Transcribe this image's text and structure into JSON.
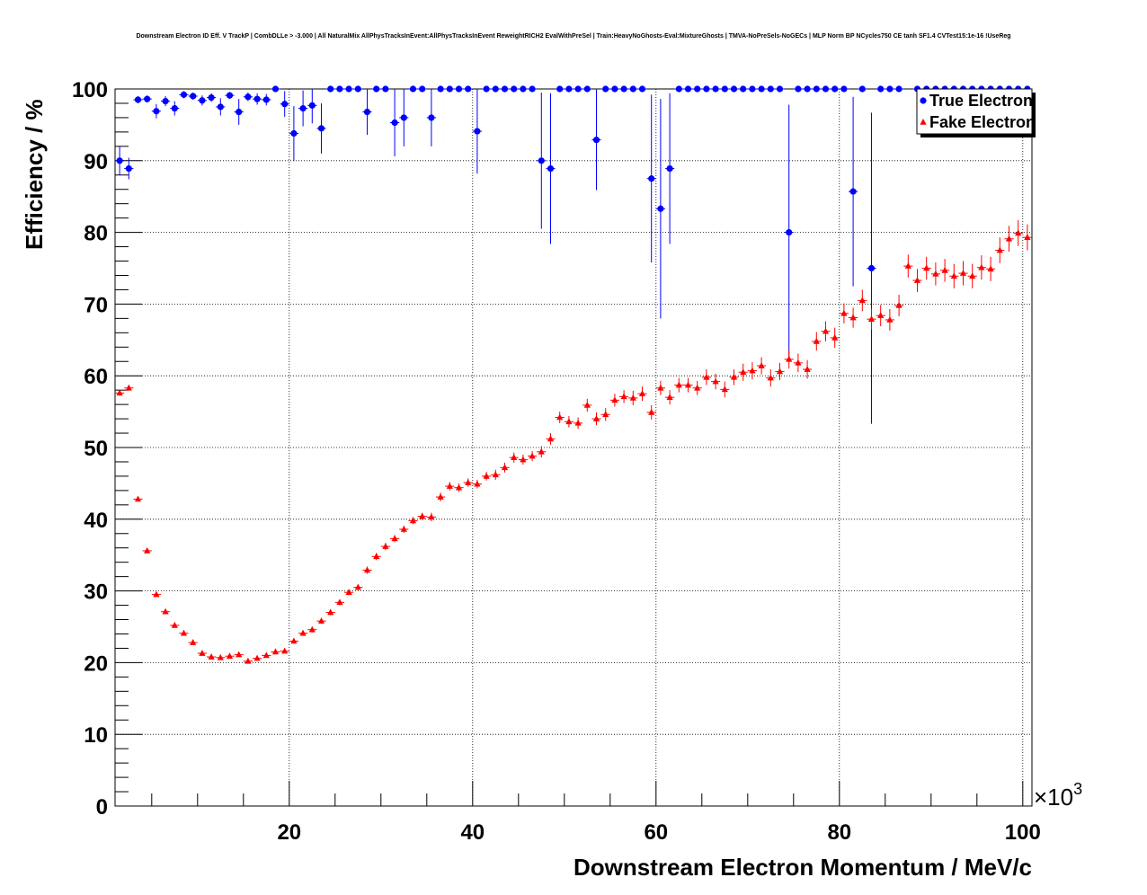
{
  "chart_data": {
    "type": "scatter",
    "title": "Downstream Electron ID Eff. V TrackP | CombDLLe > -3.000 | All NaturalMix AllPhysTracksInEvent:AllPhysTracksInEvent ReweightRICH2 EvalWithPreSel | Train:HeavyNoGhosts-Eval:MixtureGhosts | TMVA-NoPreSels-NoGECs | MLP Norm BP NCycles750 CE tanh SF1.4 CVTest15:1e-16 !UseReg",
    "xlabel": "Downstream Electron Momentum / MeV/c",
    "ylabel": "Efficiency / %",
    "x_multiplier_label": "×10",
    "x_multiplier_exponent": "3",
    "xlim": [
      1,
      101
    ],
    "ylim": [
      0,
      100
    ],
    "x_ticks": [
      "20",
      "40",
      "60",
      "80",
      "100"
    ],
    "y_ticks": [
      "0",
      "10",
      "20",
      "30",
      "40",
      "50",
      "60",
      "70",
      "80",
      "90",
      "100"
    ],
    "grid": true,
    "legend_position": "top-right",
    "series": [
      {
        "name": "True Electron",
        "color": "#0000ff",
        "marker": "circle",
        "x": [
          1.5,
          2.5,
          3.5,
          4.5,
          5.5,
          6.5,
          7.5,
          8.5,
          9.5,
          10.5,
          11.5,
          12.5,
          13.5,
          14.5,
          15.5,
          16.5,
          17.5,
          18.5,
          19.5,
          20.5,
          21.5,
          22.5,
          23.5,
          24.5,
          25.5,
          26.5,
          27.5,
          28.5,
          29.5,
          30.5,
          31.5,
          32.5,
          33.5,
          34.5,
          35.5,
          36.5,
          37.5,
          38.5,
          39.5,
          40.5,
          41.5,
          42.5,
          43.5,
          44.5,
          45.5,
          46.5,
          47.5,
          48.5,
          49.5,
          50.5,
          51.5,
          52.5,
          53.5,
          54.5,
          55.5,
          56.5,
          57.5,
          58.5,
          59.5,
          60.5,
          61.5,
          62.5,
          63.5,
          64.5,
          65.5,
          66.5,
          67.5,
          68.5,
          69.5,
          70.5,
          71.5,
          72.5,
          73.5,
          74.5,
          75.5,
          76.5,
          77.5,
          78.5,
          79.5,
          80.5,
          81.5,
          82.5,
          83.5,
          84.5,
          85.5,
          86.5,
          87.5,
          88.5,
          89.5,
          90.5,
          91.5,
          92.5,
          93.5,
          94.5,
          95.5,
          96.5,
          97.5,
          98.5,
          99.5,
          100.5
        ],
        "y": [
          90,
          88.9,
          98.5,
          98.6,
          96.9,
          98.3,
          97.3,
          99.2,
          99,
          98.4,
          98.8,
          97.5,
          99.1,
          96.8,
          98.9,
          98.6,
          98.5,
          100,
          97.9,
          93.8,
          97.3,
          97.7,
          94.5,
          100,
          100,
          100,
          100,
          96.8,
          100,
          100,
          95.3,
          96,
          100,
          100,
          96,
          100,
          100,
          100,
          100,
          94.1,
          100,
          100,
          100,
          100,
          100,
          100,
          90,
          88.9,
          100,
          100,
          100,
          100,
          92.9,
          100,
          100,
          100,
          100,
          100,
          87.5,
          83.3,
          88.9,
          100,
          100,
          100,
          100,
          100,
          100,
          100,
          100,
          100,
          100,
          100,
          100,
          80,
          100,
          100,
          100,
          100,
          100,
          100,
          85.7,
          100,
          75,
          100,
          100,
          100,
          null,
          100,
          100,
          100,
          100,
          100,
          100,
          100,
          100,
          100,
          100,
          100,
          100,
          100
        ],
        "yerr": [
          2,
          1.5,
          0.5,
          0.5,
          1,
          0.7,
          1,
          0.5,
          0.5,
          0.7,
          0.6,
          1.2,
          0.5,
          1.8,
          0.6,
          0.8,
          0.8,
          0,
          1.8,
          3.8,
          2.5,
          2.5,
          3.5,
          0,
          0,
          0,
          0,
          3.2,
          0,
          0,
          4.7,
          4,
          0,
          0,
          4,
          0,
          0,
          0,
          0,
          5.9,
          0,
          0,
          0,
          0,
          0,
          0,
          9.5,
          10.5,
          0,
          0,
          0,
          0,
          7,
          0,
          0,
          0,
          0,
          0,
          11.7,
          15.3,
          10.5,
          0,
          0,
          0,
          0,
          0,
          0,
          0,
          0,
          0,
          0,
          0,
          0,
          17.8,
          0,
          0,
          0,
          0,
          0,
          0,
          13.2,
          0,
          21.7,
          0,
          0,
          0,
          null,
          0,
          0,
          0,
          0,
          0,
          0,
          0,
          0,
          0,
          0,
          0,
          0,
          0
        ]
      },
      {
        "name": "Fake Electron",
        "color": "#ff0000",
        "marker": "triangle",
        "x": [
          1.5,
          2.5,
          3.5,
          4.5,
          5.5,
          6.5,
          7.5,
          8.5,
          9.5,
          10.5,
          11.5,
          12.5,
          13.5,
          14.5,
          15.5,
          16.5,
          17.5,
          18.5,
          19.5,
          20.5,
          21.5,
          22.5,
          23.5,
          24.5,
          25.5,
          26.5,
          27.5,
          28.5,
          29.5,
          30.5,
          31.5,
          32.5,
          33.5,
          34.5,
          35.5,
          36.5,
          37.5,
          38.5,
          39.5,
          40.5,
          41.5,
          42.5,
          43.5,
          44.5,
          45.5,
          46.5,
          47.5,
          48.5,
          49.5,
          50.5,
          51.5,
          52.5,
          53.5,
          54.5,
          55.5,
          56.5,
          57.5,
          58.5,
          59.5,
          60.5,
          61.5,
          62.5,
          63.5,
          64.5,
          65.5,
          66.5,
          67.5,
          68.5,
          69.5,
          70.5,
          71.5,
          72.5,
          73.5,
          74.5,
          75.5,
          76.5,
          77.5,
          78.5,
          79.5,
          80.5,
          81.5,
          82.5,
          83.5,
          84.5,
          85.5,
          86.5,
          87.5,
          88.5,
          89.5,
          90.5,
          91.5,
          92.5,
          93.5,
          94.5,
          95.5,
          96.5,
          97.5,
          98.5,
          99.5,
          100.5
        ],
        "y": [
          57.6,
          58.3,
          42.8,
          35.6,
          29.5,
          27.1,
          25.2,
          24.1,
          22.8,
          21.3,
          20.8,
          20.7,
          20.9,
          21.1,
          20.2,
          20.6,
          21,
          21.5,
          21.6,
          23,
          24.1,
          24.6,
          25.8,
          27,
          28.4,
          29.8,
          30.5,
          32.9,
          34.8,
          36.2,
          37.3,
          38.6,
          39.8,
          40.4,
          40.3,
          43.1,
          44.6,
          44.4,
          45.1,
          44.9,
          46,
          46.2,
          47.2,
          48.6,
          48.3,
          48.8,
          49.4,
          51.2,
          54.2,
          53.6,
          53.4,
          55.9,
          54,
          54.6,
          56.6,
          57.1,
          56.9,
          57.5,
          54.9,
          58.3,
          57,
          58.7,
          58.7,
          58.3,
          59.8,
          59.2,
          58.1,
          59.8,
          60.5,
          60.7,
          61.4,
          59.7,
          60.6,
          62.3,
          61.8,
          60.9,
          64.8,
          66.2,
          65.3,
          68.7,
          68.1,
          70.5,
          67.9,
          68.4,
          67.8,
          69.8,
          75.3,
          73.3,
          75,
          74.2,
          74.7,
          73.9,
          74.3,
          73.9,
          75.1,
          74.9,
          77.5,
          79.1,
          79.9,
          79.3
        ],
        "yerr": [
          0.3,
          0.3,
          0.3,
          0.3,
          0.3,
          0.3,
          0.3,
          0.3,
          0.3,
          0.3,
          0.3,
          0.3,
          0.3,
          0.3,
          0.3,
          0.3,
          0.3,
          0.3,
          0.3,
          0.3,
          0.3,
          0.4,
          0.4,
          0.4,
          0.4,
          0.4,
          0.4,
          0.5,
          0.5,
          0.5,
          0.5,
          0.5,
          0.5,
          0.5,
          0.6,
          0.6,
          0.6,
          0.6,
          0.6,
          0.6,
          0.6,
          0.7,
          0.7,
          0.7,
          0.7,
          0.7,
          0.8,
          0.8,
          0.8,
          0.8,
          0.8,
          0.9,
          0.9,
          0.9,
          0.9,
          0.9,
          1,
          1,
          1,
          1,
          1,
          1,
          1,
          1,
          1.1,
          1.1,
          1.1,
          1.1,
          1.2,
          1.2,
          1.2,
          1.2,
          1.2,
          1.3,
          1.3,
          1.3,
          1.3,
          1.4,
          1.4,
          1.4,
          1.4,
          1.5,
          1.5,
          1.5,
          1.5,
          1.5,
          1.6,
          1.6,
          1.6,
          1.6,
          1.6,
          1.7,
          1.7,
          1.7,
          1.7,
          1.7,
          1.8,
          1.8,
          1.8,
          1.8
        ]
      }
    ]
  }
}
